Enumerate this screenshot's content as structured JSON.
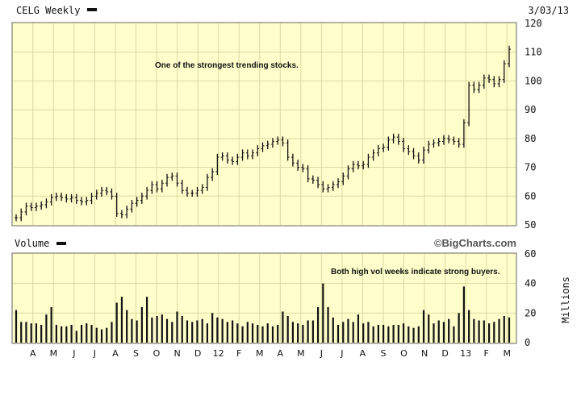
{
  "header": {
    "ticker_label": "CELG Weekly",
    "date_label": "3/03/13",
    "volume_label": "Volume",
    "brand": "©BigCharts.com",
    "volume_unit": "Millions"
  },
  "annotations": {
    "price_note": "One of the strongest trending stocks.",
    "volume_note": "Both high vol weeks indicate strong buyers."
  },
  "colors": {
    "plot_bg": "#ffffcc",
    "grid": "#d8d8a0",
    "bars": "#111111",
    "frame": "#666666",
    "header_bg": "#ffffff"
  },
  "chart_data": [
    {
      "type": "ohlc",
      "title": "CELG Weekly",
      "ylim": [
        50,
        120
      ],
      "yticks": [
        50,
        60,
        70,
        80,
        90,
        100,
        110,
        120
      ],
      "grid": true,
      "x_labels": [
        "A",
        "M",
        "J",
        "J",
        "A",
        "S",
        "O",
        "N",
        "D",
        "12",
        "F",
        "M",
        "A",
        "M",
        "J",
        "J",
        "A",
        "S",
        "O",
        "N",
        "D",
        "13",
        "F",
        "M"
      ],
      "weekly_close": [
        52.5,
        54.5,
        56.5,
        56.0,
        56.5,
        57.0,
        58.0,
        59.5,
        60.0,
        59.5,
        59.0,
        59.5,
        58.5,
        58.0,
        58.5,
        60.0,
        61.0,
        62.0,
        61.5,
        60.0,
        54.0,
        53.5,
        55.5,
        57.5,
        58.5,
        60.0,
        62.0,
        64.0,
        62.5,
        64.5,
        66.5,
        67.0,
        64.5,
        62.0,
        61.0,
        61.0,
        62.0,
        63.0,
        66.5,
        68.5,
        73.5,
        74.0,
        72.5,
        72.0,
        73.5,
        75.0,
        74.0,
        75.0,
        76.5,
        77.5,
        78.0,
        79.0,
        79.5,
        78.5,
        73.5,
        71.5,
        70.0,
        69.5,
        66.0,
        65.5,
        64.0,
        62.5,
        63.0,
        64.0,
        65.0,
        67.0,
        69.5,
        71.0,
        70.5,
        71.0,
        73.5,
        75.0,
        76.5,
        77.0,
        79.5,
        80.5,
        79.0,
        76.5,
        75.5,
        74.0,
        72.5,
        76.0,
        78.0,
        78.5,
        79.0,
        80.0,
        79.5,
        79.0,
        78.0,
        85.5,
        98.5,
        97.0,
        98.5,
        101.0,
        100.5,
        99.0,
        100.5,
        106.0,
        111.0
      ]
    },
    {
      "type": "bar",
      "title": "Volume",
      "ylabel": "Millions",
      "ylim": [
        0,
        60
      ],
      "yticks": [
        0,
        20,
        40,
        60
      ],
      "values": [
        22,
        14,
        14,
        13,
        13,
        12,
        19,
        24,
        12,
        11,
        11,
        12,
        8,
        12,
        13,
        12,
        10,
        9,
        10,
        14,
        27,
        31,
        22,
        16,
        15,
        24,
        31,
        17,
        18,
        19,
        16,
        14,
        21,
        18,
        15,
        14,
        15,
        16,
        13,
        20,
        17,
        16,
        14,
        15,
        13,
        11,
        14,
        13,
        12,
        11,
        13,
        11,
        12,
        21,
        18,
        14,
        13,
        12,
        15,
        15,
        24,
        40,
        24,
        17,
        12,
        14,
        16,
        14,
        19,
        13,
        14,
        11,
        12,
        12,
        11,
        12,
        12,
        13,
        11,
        10,
        11,
        22,
        19,
        13,
        15,
        14,
        16,
        11,
        20,
        38,
        22,
        16,
        15,
        15,
        13,
        14,
        16,
        18,
        17
      ]
    }
  ]
}
